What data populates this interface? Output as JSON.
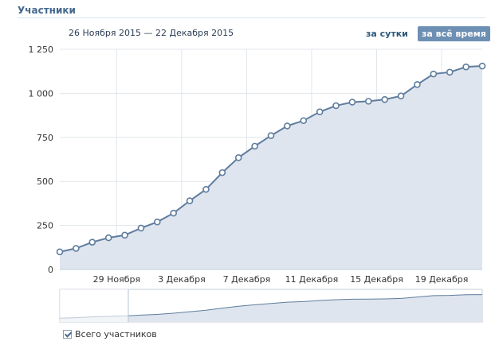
{
  "page": {
    "title": "Участники"
  },
  "header": {
    "date_range": "26 Ноября 2015 — 22 Декабря 2015",
    "btn_day": "за сутки",
    "btn_all": "за всё время"
  },
  "legend": {
    "label": "Всего участников",
    "checked": true
  },
  "colors": {
    "line": "#5f7d9e",
    "area": "#dfe5ee",
    "grid": "#e1e6ec",
    "accent": "#45688e",
    "button_active": "#6d8fb3"
  },
  "chart_data": {
    "type": "area",
    "title": "",
    "xlabel": "",
    "ylabel": "",
    "ylim": [
      0,
      1250
    ],
    "y_ticks": [
      0,
      250,
      500,
      750,
      1000,
      1250
    ],
    "y_tick_labels": [
      "0",
      "250",
      "500",
      "750",
      "1 000",
      "1 250"
    ],
    "x_tick_labels": [
      "29 Ноября",
      "3 Декабря",
      "7 Декабря",
      "11 Декабря",
      "15 Декабря",
      "19 Декабря"
    ],
    "x_tick_index": [
      3,
      7,
      11,
      15,
      19,
      23
    ],
    "grid": true,
    "legend_position": "bottom-left",
    "series": [
      {
        "name": "Всего участников",
        "values": [
          100,
          120,
          155,
          180,
          195,
          235,
          270,
          320,
          390,
          455,
          550,
          635,
          700,
          760,
          815,
          845,
          895,
          930,
          950,
          955,
          965,
          985,
          1050,
          1110,
          1120,
          1150,
          1155
        ]
      }
    ]
  }
}
